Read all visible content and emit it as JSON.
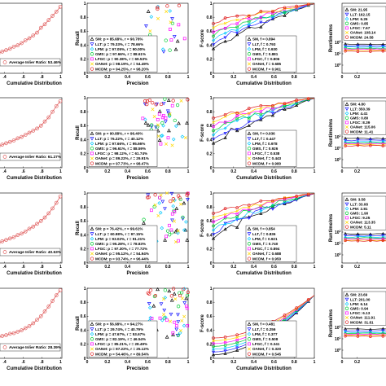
{
  "figure": {
    "column_xlabels": [
      "Cumulative Distribution",
      "Precision",
      "Cumulative Distribution",
      ""
    ],
    "column_ylabels": [
      "",
      "Recall",
      "F-score",
      "Runtime/ms"
    ],
    "colors": {
      "SM": "#000000",
      "LLT": "#1a1aff",
      "LPM": "#00c8ff",
      "GMS": "#00cc33",
      "LFGC": "#ff00ff",
      "OANet": "#ffd800",
      "MCDM": "#e02020",
      "inlier": "#e06060"
    }
  },
  "chart_data": [
    {
      "type": "line",
      "panel": "r1c1",
      "legend": "Average Inlier Ratio: 53.46%",
      "x_ticks": [
        ".4",
        ".6",
        ".8",
        "1"
      ],
      "y": [
        0.28,
        0.31,
        0.33,
        0.35,
        0.38,
        0.4,
        0.43,
        0.47,
        0.5,
        0.54,
        0.58,
        0.65,
        0.7,
        0.76,
        0.82,
        0.88,
        0.95
      ]
    },
    {
      "type": "scatter",
      "panel": "r1c2",
      "xlabel": "Precision",
      "ylabel": "Recall",
      "x_ticks": [
        "0",
        "0.2",
        "0.4",
        "0.6",
        "0.8",
        "1"
      ],
      "y_ticks": [
        "0",
        "0.2",
        "0.4",
        "0.6",
        "0.8",
        "1"
      ],
      "legend": [
        {
          "key": "SM",
          "text": "SM: p = 85.68%, r = 90.76%"
        },
        {
          "key": "LLT",
          "text": "LLT: p = 79.33%, r = 78.66%"
        },
        {
          "key": "LPM",
          "text": "LPM: p = 97.05%, r = 90.00%"
        },
        {
          "key": "GMS",
          "text": "GMS: p = 97.66%, r = 88.61%"
        },
        {
          "key": "LFGC",
          "text": "LFGC: p = 90.38%, r = 69.53%"
        },
        {
          "key": "OANet",
          "text": "OANet: p = 98.19%, r = 54.49%"
        },
        {
          "key": "MCDM",
          "text": "MCDM: p = 94.25%, r = 98.20%"
        }
      ]
    },
    {
      "type": "line",
      "panel": "r1c3",
      "xlabel": "Cumulative Distribution",
      "ylabel": "F-score",
      "x_ticks": [
        "0",
        "0.2",
        "0.4",
        "0.6",
        "0.8",
        "1"
      ],
      "y_ticks": [
        "0",
        "0.2",
        "0.4",
        "0.6",
        "0.8",
        "1"
      ],
      "legend": [
        {
          "key": "SM",
          "text": "SM, f = 0.894"
        },
        {
          "key": "LLT",
          "text": "LLT, f = 0.793"
        },
        {
          "key": "LPM",
          "text": "LPM, f = 0.930"
        },
        {
          "key": "GMS",
          "text": "GMS, f = 0.881"
        },
        {
          "key": "LFGC",
          "text": "LFGC, f = 0.806"
        },
        {
          "key": "OANet",
          "text": "OANet, f = 0.685"
        },
        {
          "key": "MCDM",
          "text": "MCDM, f = 0.961"
        }
      ]
    },
    {
      "type": "line",
      "panel": "r1c4",
      "ylabel": "Runtime/ms",
      "x_ticks": [
        "0",
        "0.2"
      ],
      "y_ticks": [
        "10^2",
        "10^1",
        "10^0"
      ],
      "y_scale": "log",
      "legend": [
        {
          "key": "SM",
          "text": "SM: 21.95"
        },
        {
          "key": "LLT",
          "text": "LLT: 162.15"
        },
        {
          "key": "LPM",
          "text": "LPM: 6.26"
        },
        {
          "key": "GMS",
          "text": "GMS: 0.85"
        },
        {
          "key": "LFGC",
          "text": "LFGC: 7.67"
        },
        {
          "key": "OANet",
          "text": "OANet: 108.14"
        },
        {
          "key": "MCDM",
          "text": "MCDM: 24.58"
        }
      ]
    },
    {
      "type": "line",
      "panel": "r2c1",
      "legend": "Average Inlier Ratio: 61.27%",
      "x_ticks": [
        ".4",
        ".6",
        ".8",
        "1"
      ],
      "y": [
        0.3,
        0.33,
        0.35,
        0.37,
        0.39,
        0.42,
        0.44,
        0.47,
        0.5,
        0.53,
        0.56,
        0.6,
        0.66,
        0.72,
        0.8,
        0.88,
        0.95
      ]
    },
    {
      "type": "scatter",
      "panel": "r2c2",
      "xlabel": "Precision",
      "ylabel": "Recall",
      "x_ticks": [
        "0",
        "0.2",
        "0.4",
        "0.6",
        "0.8",
        "1"
      ],
      "y_ticks": [
        "0",
        "0.2",
        "0.4",
        "0.6",
        "0.8",
        "1"
      ],
      "legend": [
        {
          "key": "SM",
          "text": "SM: p = 90.88%, r = 96.40%"
        },
        {
          "key": "LLT",
          "text": "LLT: p = 76.22%, r = 40.12%"
        },
        {
          "key": "LPM",
          "text": "LPM: p = 97.66%, r = 95.66%"
        },
        {
          "key": "GMS",
          "text": "GMS: p = 96.61%, r = 88.59%"
        },
        {
          "key": "LFGC",
          "text": "LFGC: p = 98.12%, r = 61.74%"
        },
        {
          "key": "OANet",
          "text": "OANet: p = 89.22%, r = 29.91%"
        },
        {
          "key": "MCDM",
          "text": "MCDM: p = 97.73%, r = 98.47%"
        }
      ]
    },
    {
      "type": "line",
      "panel": "r2c3",
      "xlabel": "Cumulative Distribution",
      "ylabel": "F-score",
      "x_ticks": [
        "0",
        "0.2",
        "0.4",
        "0.6",
        "0.8",
        "1"
      ],
      "y_ticks": [
        "0",
        "0.2",
        "0.4",
        "0.6",
        "0.8",
        "1"
      ],
      "legend": [
        {
          "key": "SM",
          "text": "SM, f = 0.936"
        },
        {
          "key": "LLT",
          "text": "LLT, f = 0.447"
        },
        {
          "key": "LPM",
          "text": "LPM, f = 0.978"
        },
        {
          "key": "GMS",
          "text": "GMS, f = 0.926"
        },
        {
          "key": "LFGC",
          "text": "LFGC, f = 0.538"
        },
        {
          "key": "OANet",
          "text": "OANet, f = 0.443"
        },
        {
          "key": "MCDM",
          "text": "MCDM, f = 0.980"
        }
      ]
    },
    {
      "type": "line",
      "panel": "r2c4",
      "ylabel": "Runtime/ms",
      "x_ticks": [
        "0",
        "0.2"
      ],
      "y_ticks": [
        "10^2",
        "10^1",
        "10^0"
      ],
      "y_scale": "log",
      "legend": [
        {
          "key": "SM",
          "text": "SM: 4.80"
        },
        {
          "key": "LLT",
          "text": "LLT: 350.39"
        },
        {
          "key": "LPM",
          "text": "LPM: 4.41"
        },
        {
          "key": "GMS",
          "text": "GMS: 0.80"
        },
        {
          "key": "LFGC",
          "text": "LFGC: 8.39"
        },
        {
          "key": "OANet",
          "text": "OANet: 115.06"
        },
        {
          "key": "MCDM",
          "text": "MCDM: 11.41"
        }
      ]
    },
    {
      "type": "line",
      "panel": "r3c1",
      "legend": "Average Inlier Ratio: 40.63%",
      "x_ticks": [
        ".4",
        ".6",
        ".8",
        "1"
      ],
      "y": [
        0.28,
        0.31,
        0.33,
        0.35,
        0.37,
        0.4,
        0.42,
        0.45,
        0.49,
        0.52,
        0.56,
        0.6,
        0.65,
        0.71,
        0.78,
        0.86,
        0.95
      ]
    },
    {
      "type": "scatter",
      "panel": "r3c2",
      "xlabel": "Precision",
      "ylabel": "Recall",
      "x_ticks": [
        "0",
        "0.2",
        "0.4",
        "0.6",
        "0.8",
        "1"
      ],
      "y_ticks": [
        "0",
        "0.2",
        "0.4",
        "0.6",
        "0.8",
        "1"
      ],
      "legend": [
        {
          "key": "SM",
          "text": "SM: p = 76.42%, r = 99.61%"
        },
        {
          "key": "LLT",
          "text": "LLT: p = 60.98%, r = 97.15%"
        },
        {
          "key": "LPM",
          "text": "LPM: p = 93.02%, r = 91.21%"
        },
        {
          "key": "GMS",
          "text": "GMS: p = 95.28%, r = 78.83%"
        },
        {
          "key": "LFGC",
          "text": "LFGC: p = 97.30%, r = 77.72%"
        },
        {
          "key": "OANet",
          "text": "OANet: p = 95.12%, r = 54.94%"
        },
        {
          "key": "MCDM",
          "text": "MCDM: p = 93.74%, r = 96.44%"
        }
      ]
    },
    {
      "type": "line",
      "panel": "r3c3",
      "xlabel": "Cumulative Distribution",
      "ylabel": "F-score",
      "x_ticks": [
        "0",
        "0.2",
        "0.4",
        "0.6",
        "0.8",
        "1"
      ],
      "y_ticks": [
        "0",
        "0.2",
        "0.4",
        "0.6",
        "0.8",
        "1"
      ],
      "legend": [
        {
          "key": "SM",
          "text": "SM, f = 0.854"
        },
        {
          "key": "LLT",
          "text": "LLT, f = 0.836"
        },
        {
          "key": "LPM",
          "text": "LPM, f = 0.921"
        },
        {
          "key": "GMS",
          "text": "GMS, f = 0.740"
        },
        {
          "key": "LFGC",
          "text": "LFGC, f = 0.894"
        },
        {
          "key": "OANet",
          "text": "OANet, f = 0.688"
        },
        {
          "key": "MCDM",
          "text": "MCDM, f = 0.950"
        }
      ]
    },
    {
      "type": "line",
      "panel": "r3c4",
      "ylabel": "Runtime/ms",
      "x_ticks": [
        "0",
        "0.2"
      ],
      "y_ticks": [
        "10^2",
        "10^1",
        "10^0"
      ],
      "y_scale": "log",
      "legend": [
        {
          "key": "SM",
          "text": "SM: 3.58"
        },
        {
          "key": "LLT",
          "text": "LLT: 33.08"
        },
        {
          "key": "LPM",
          "text": "LPM: 2.81"
        },
        {
          "key": "GMS",
          "text": "GMS: 1.90"
        },
        {
          "key": "LFGC",
          "text": "LFGC: 9.25"
        },
        {
          "key": "OANet",
          "text": "OANet: 113.35"
        },
        {
          "key": "MCDM",
          "text": "MCDM: 5.11"
        }
      ]
    },
    {
      "type": "line",
      "panel": "r4c1",
      "legend": "Average Inlier Ratio: 28.39%",
      "x_ticks": [
        ".4",
        ".6",
        ".8",
        "1"
      ],
      "y": [
        0.3,
        0.32,
        0.33,
        0.35,
        0.36,
        0.38,
        0.4,
        0.43,
        0.46,
        0.5,
        0.55,
        0.6,
        0.67,
        0.74,
        0.82,
        0.9,
        0.97
      ]
    },
    {
      "type": "scatter",
      "panel": "r4c2",
      "xlabel": "Precision",
      "ylabel": "Recall",
      "x_ticks": [
        "0",
        "0.2",
        "0.4",
        "0.6",
        "0.8",
        "1"
      ],
      "y_ticks": [
        "0",
        "0.2",
        "0.4",
        "0.6",
        "0.8",
        "1"
      ],
      "legend": [
        {
          "key": "SM",
          "text": "SM: p = 56.98%, r = 94.27%"
        },
        {
          "key": "LLT",
          "text": "LLT: p = 29.74%, r = 40.79%"
        },
        {
          "key": "LPM",
          "text": "LPM: p = 47.67%, r = 53.67%"
        },
        {
          "key": "GMS",
          "text": "GMS: p = 82.19%, r = 46.54%"
        },
        {
          "key": "LFGC",
          "text": "LFGC: p = 85.21%, r = 28.49%"
        },
        {
          "key": "OANet",
          "text": "OANet: p = 87.22%, r = 25.12%"
        },
        {
          "key": "MCDM",
          "text": "MCDM: p = 54.46%, r = 89.54%"
        }
      ]
    },
    {
      "type": "line",
      "panel": "r4c3",
      "xlabel": "Cumulative Distribution",
      "ylabel": "F-score",
      "x_ticks": [
        "0",
        "0.2",
        "0.4",
        "0.6",
        "0.8",
        "1"
      ],
      "y_ticks": [
        "0",
        "0.2",
        "0.4",
        "0.6",
        "0.8",
        "1"
      ],
      "legend": [
        {
          "key": "SM",
          "text": "SM, f = 0.481"
        },
        {
          "key": "LLT",
          "text": "LLT, f = 0.256"
        },
        {
          "key": "LPM",
          "text": "LPM, f = 0.377"
        },
        {
          "key": "GMS",
          "text": "GMS, f = 0.508"
        },
        {
          "key": "LFGC",
          "text": "LFGC, f = 0.341"
        },
        {
          "key": "OANet",
          "text": "OANet, f = 0.320"
        },
        {
          "key": "MCDM",
          "text": "MCDM, f = 0.545"
        }
      ]
    },
    {
      "type": "line",
      "panel": "r4c4",
      "ylabel": "Runtime/ms",
      "x_ticks": [
        "0",
        "0.2"
      ],
      "y_ticks": [
        "10^2",
        "10^1",
        "10^0"
      ],
      "y_scale": "log",
      "legend": [
        {
          "key": "SM",
          "text": "SM: 23.69"
        },
        {
          "key": "LLT",
          "text": "LLT: 201.00"
        },
        {
          "key": "LPM",
          "text": "LPM: 6.14"
        },
        {
          "key": "GMS",
          "text": "GMS: 0.94"
        },
        {
          "key": "LFGC",
          "text": "LFGC: 6.13"
        },
        {
          "key": "OANet",
          "text": "OANet: 111.91"
        },
        {
          "key": "MCDM",
          "text": "MCDM: 31.81"
        }
      ]
    }
  ]
}
